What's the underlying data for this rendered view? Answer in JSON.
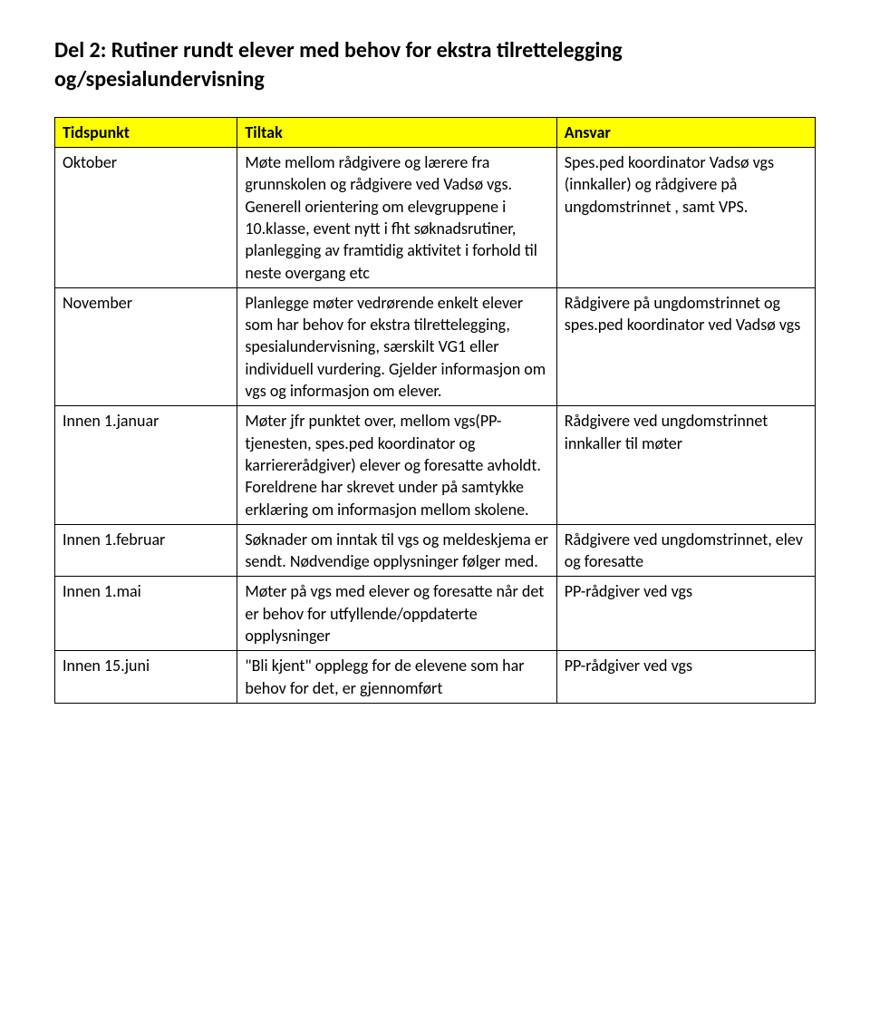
{
  "title": "Del 2: Rutiner rundt elever med behov for ekstra tilrettelegging og/spesialundervisning",
  "table": {
    "header_bg": "#ffff00",
    "border_color": "#000000",
    "headers": [
      "Tidspunkt",
      "Tiltak",
      "Ansvar"
    ],
    "rows": [
      {
        "tidspunkt": "Oktober",
        "tiltak": "Møte mellom rådgivere og lærere fra grunnskolen og rådgivere ved Vadsø vgs. Generell orientering om elevgruppene i 10.klasse, event nytt i fht søknadsrutiner, planlegging av framtidig aktivitet i forhold til neste overgang etc",
        "ansvar": "Spes.ped koordinator Vadsø vgs (innkaller) og rådgivere på ungdomstrinnet , samt VPS."
      },
      {
        "tidspunkt": "November",
        "tiltak": "Planlegge møter vedrørende enkelt elever som har behov for ekstra tilrettelegging, spesialundervisning, særskilt VG1 eller individuell vurdering. Gjelder informasjon om vgs og informasjon om elever.",
        "ansvar": "Rådgivere på ungdomstrinnet og spes.ped koordinator ved Vadsø vgs"
      },
      {
        "tidspunkt": "Innen 1.januar",
        "tiltak": "Møter jfr punktet over, mellom vgs(PP-tjenesten, spes.ped koordinator og karriererådgiver) elever og foresatte avholdt.  Foreldrene har skrevet under på samtykke erklæring om informasjon mellom skolene.",
        "ansvar": "Rådgivere ved ungdomstrinnet innkaller til møter"
      },
      {
        "tidspunkt": "Innen 1.februar",
        "tiltak": "Søknader om inntak til vgs og meldeskjema er sendt. Nødvendige opplysninger følger med.",
        "ansvar": "Rådgivere ved ungdomstrinnet, elev og foresatte"
      },
      {
        "tidspunkt": "Innen 1.mai",
        "tiltak": "Møter på vgs med elever og foresatte når det er behov for utfyllende/oppdaterte opplysninger",
        "ansvar": "PP-rådgiver ved vgs"
      },
      {
        "tidspunkt": "Innen 15.juni",
        "tiltak": "\"Bli kjent\" opplegg for de elevene som har behov for det, er gjennomført",
        "ansvar": "PP-rådgiver ved vgs"
      }
    ]
  }
}
